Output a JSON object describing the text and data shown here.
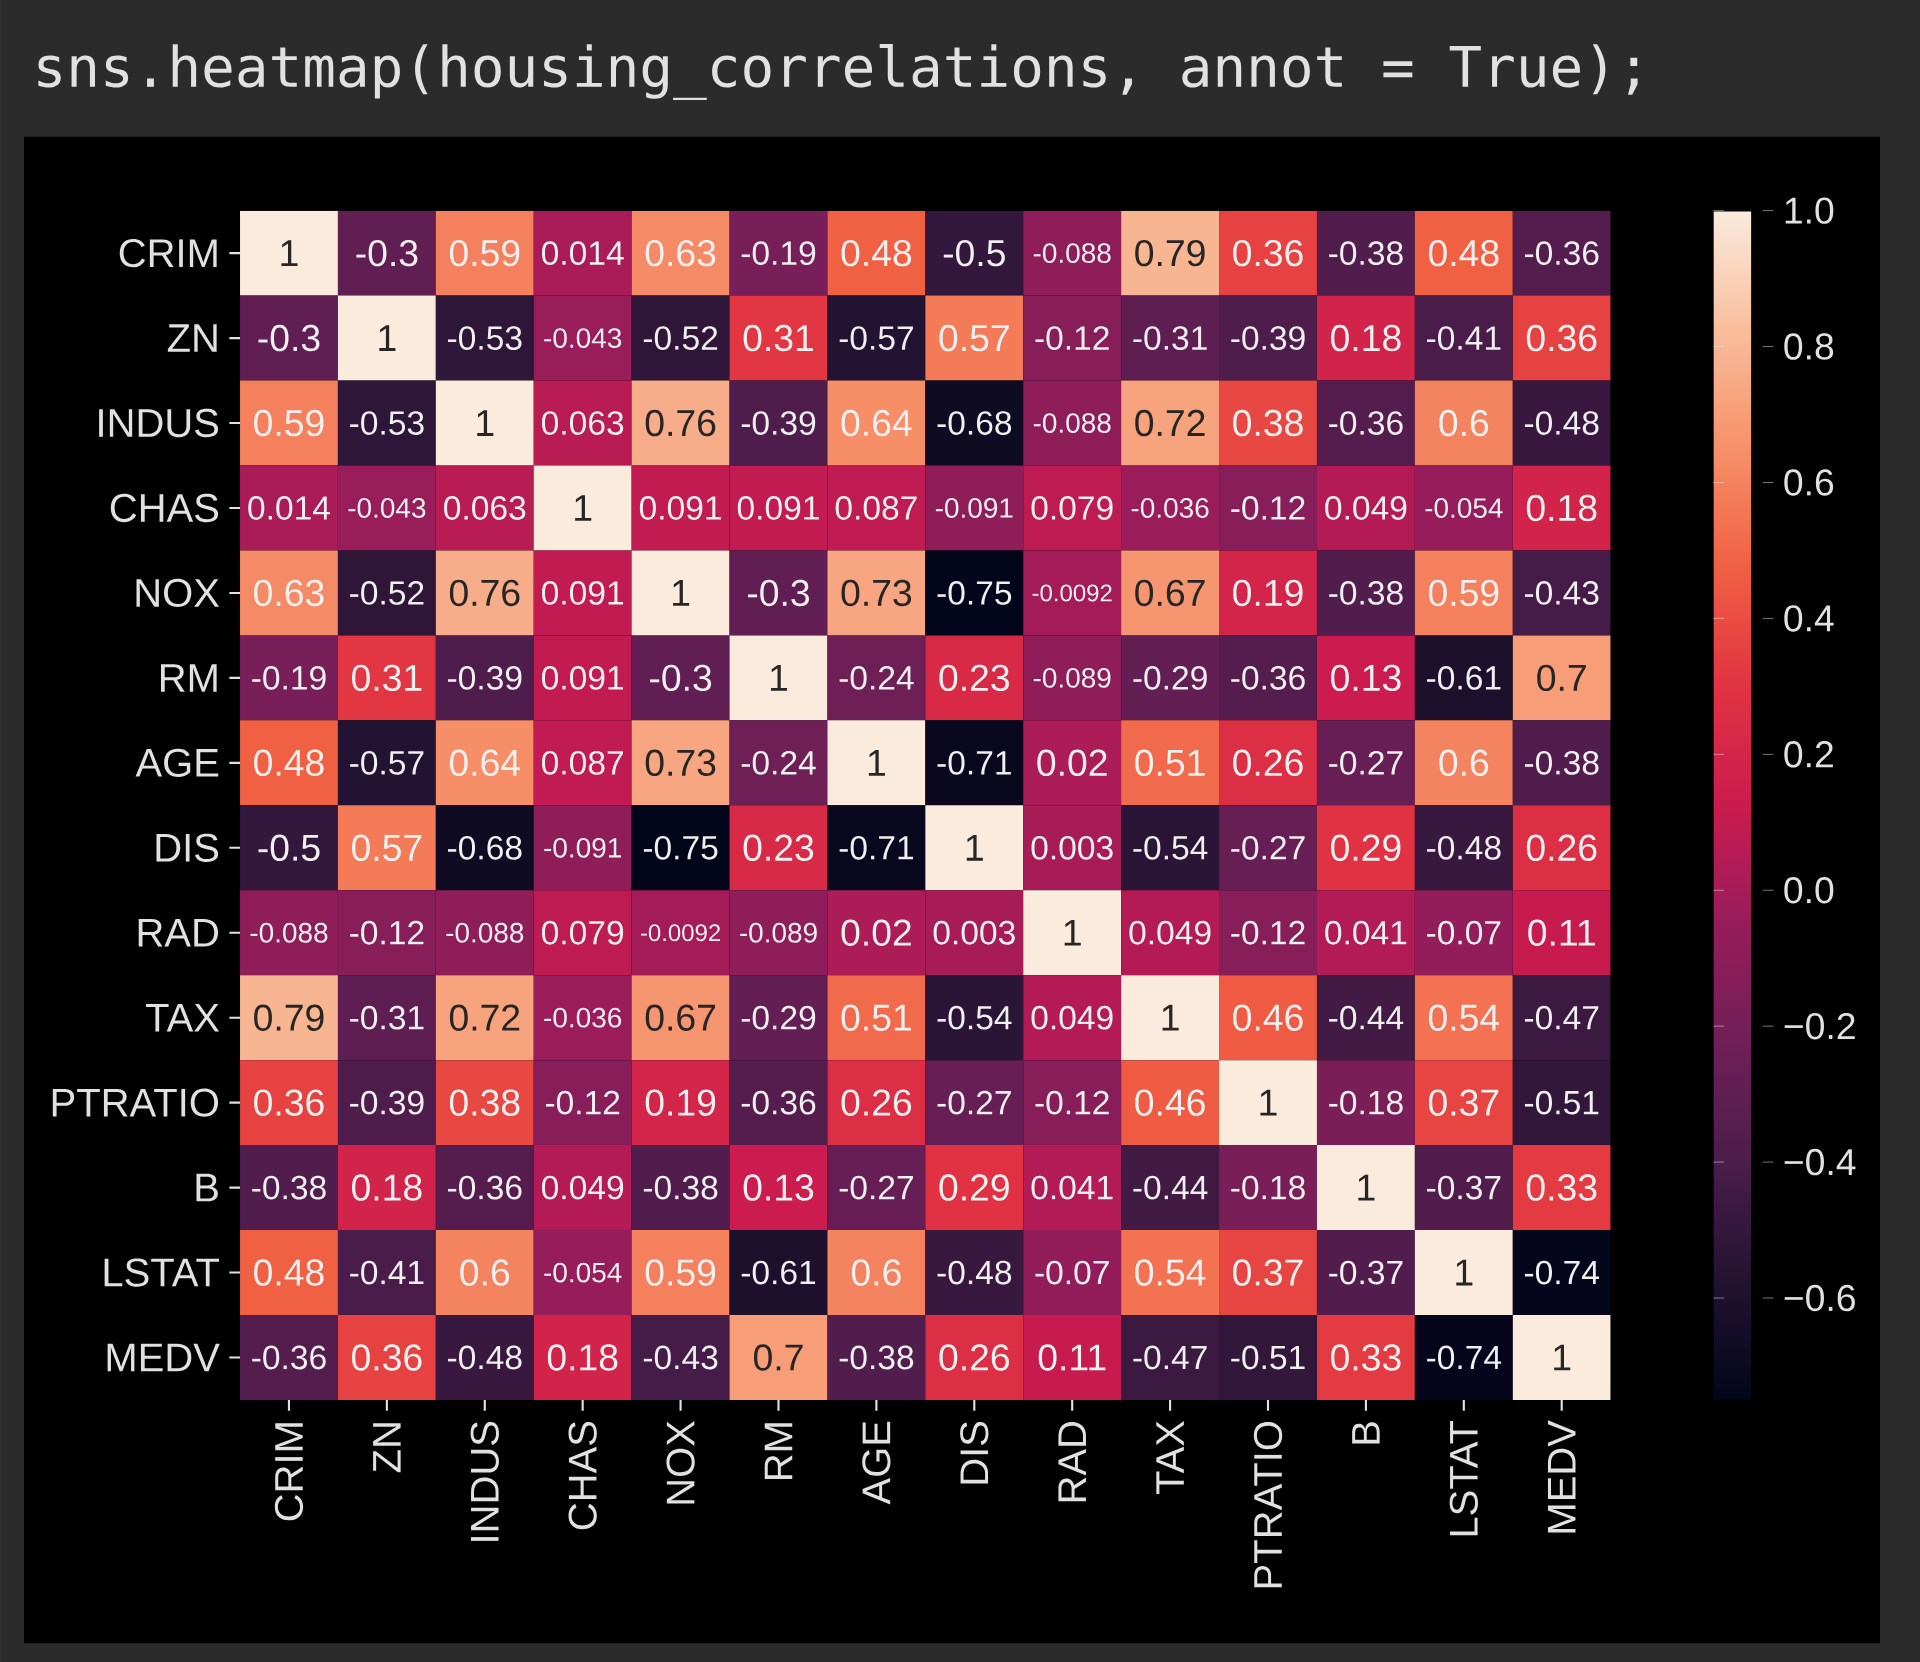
{
  "chart_data": {
    "type": "heatmap",
    "title": "sns.heatmap(housing_correlations, annot = True);",
    "categories": [
      "CRIM",
      "ZN",
      "INDUS",
      "CHAS",
      "NOX",
      "RM",
      "AGE",
      "DIS",
      "RAD",
      "TAX",
      "PTRATIO",
      "B",
      "LSTAT",
      "MEDV"
    ],
    "y_categories": [
      "CRIM",
      "ZN",
      "INDUS",
      "CHAS",
      "NOX",
      "RM",
      "AGE",
      "DIS",
      "RAD",
      "TAX",
      "PTRATIO",
      "B",
      "LSTAT",
      "MEDV"
    ],
    "cells": [
      [
        1,
        -0.3,
        0.59,
        0.014,
        0.63,
        -0.19,
        0.48,
        -0.5,
        -0.088,
        0.79,
        0.36,
        -0.38,
        0.48,
        -0.36
      ],
      [
        -0.3,
        1,
        -0.53,
        -0.043,
        -0.52,
        0.31,
        -0.57,
        0.57,
        -0.12,
        -0.31,
        -0.39,
        0.18,
        -0.41,
        0.36
      ],
      [
        0.59,
        -0.53,
        1,
        0.063,
        0.76,
        -0.39,
        0.64,
        -0.68,
        -0.088,
        0.72,
        0.38,
        -0.36,
        0.6,
        -0.48
      ],
      [
        0.014,
        -0.043,
        0.063,
        1,
        0.091,
        0.091,
        0.087,
        -0.091,
        0.079,
        -0.036,
        -0.12,
        0.049,
        -0.054,
        0.18
      ],
      [
        0.63,
        -0.52,
        0.76,
        0.091,
        1,
        -0.3,
        0.73,
        -0.75,
        -0.0092,
        0.67,
        0.19,
        -0.38,
        0.59,
        -0.43
      ],
      [
        -0.19,
        0.31,
        -0.39,
        0.091,
        -0.3,
        1,
        -0.24,
        0.23,
        -0.089,
        -0.29,
        -0.36,
        0.13,
        -0.61,
        0.7
      ],
      [
        0.48,
        -0.57,
        0.64,
        0.087,
        0.73,
        -0.24,
        1,
        -0.71,
        0.02,
        0.51,
        0.26,
        -0.27,
        0.6,
        -0.38
      ],
      [
        -0.5,
        0.57,
        -0.68,
        -0.091,
        -0.75,
        0.23,
        -0.71,
        1,
        0.003,
        -0.54,
        -0.27,
        0.29,
        -0.48,
        0.26
      ],
      [
        -0.088,
        -0.12,
        -0.088,
        0.079,
        -0.0092,
        -0.089,
        0.02,
        0.003,
        1,
        0.049,
        -0.12,
        0.041,
        -0.07,
        0.11
      ],
      [
        0.79,
        -0.31,
        0.72,
        -0.036,
        0.67,
        -0.29,
        0.51,
        -0.54,
        0.049,
        1,
        0.46,
        -0.44,
        0.54,
        -0.47
      ],
      [
        0.36,
        -0.39,
        0.38,
        -0.12,
        0.19,
        -0.36,
        0.26,
        -0.27,
        -0.12,
        0.46,
        1,
        -0.18,
        0.37,
        -0.51
      ],
      [
        -0.38,
        0.18,
        -0.36,
        0.049,
        -0.38,
        0.13,
        -0.27,
        0.29,
        0.041,
        -0.44,
        -0.18,
        1,
        -0.37,
        0.33
      ],
      [
        0.48,
        -0.41,
        0.6,
        -0.054,
        0.59,
        -0.61,
        0.6,
        -0.48,
        -0.07,
        0.54,
        0.37,
        -0.37,
        1,
        -0.74
      ],
      [
        -0.36,
        0.36,
        -0.48,
        0.18,
        -0.43,
        0.7,
        -0.38,
        0.26,
        0.11,
        -0.47,
        -0.51,
        0.33,
        -0.74,
        1
      ]
    ],
    "data_labels": true,
    "clim": [
      -0.75,
      1
    ],
    "cticks": [
      {
        "value": -0.6,
        "label": "−0.6"
      },
      {
        "value": -0.4,
        "label": "−0.4"
      },
      {
        "value": -0.2,
        "label": "−0.2"
      },
      {
        "value": 0,
        "label": "0.0"
      },
      {
        "value": 0.2,
        "label": "0.2"
      },
      {
        "value": 0.4,
        "label": "0.4"
      },
      {
        "value": 0.6,
        "label": "0.6"
      },
      {
        "value": 0.8,
        "label": "0.8"
      },
      {
        "value": 1,
        "label": "1.0"
      }
    ]
  }
}
